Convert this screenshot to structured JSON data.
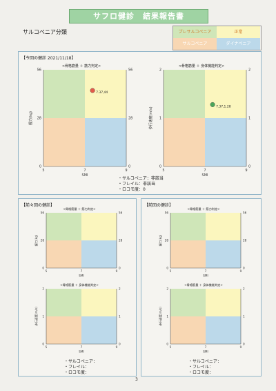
{
  "header": {
    "title": "サフロ健診　結果報告書",
    "subtitle": "サルコペニア分類"
  },
  "legend": {
    "items": [
      "プレサルコペニア",
      "正常",
      "サルコペニア",
      "ダイナペニア"
    ],
    "colors": [
      "#cfe6b8",
      "#fbf6be",
      "#f8d7b3",
      "#bcd9ea"
    ]
  },
  "current": {
    "label": "【今回の健診 2021/11/18】",
    "summary": [
      "・サルコペニア：非該当",
      "・フレイル：非該当",
      "・ロコモ度：0"
    ]
  },
  "previous2": {
    "label": "【前々回の健診】",
    "summary": [
      "・サルコペニア：",
      "・フレイル：",
      "・ロコモ度："
    ]
  },
  "previous1": {
    "label": "【前回の健診】",
    "summary": [
      "・サルコペニア：",
      "・フレイル：",
      "・ロコモ度："
    ]
  },
  "charts": {
    "strength": {
      "title": "<骨格筋量 ＋ 筋力判定>",
      "xlabel": "SMI",
      "ylabel": "握力(kg)",
      "x_ticks": [
        "5",
        "7",
        "9"
      ],
      "y_left_ticks": [
        "0",
        "28",
        "56"
      ],
      "y_right_ticks": [
        "0",
        "28",
        "56"
      ]
    },
    "function": {
      "title": "<骨格筋量 ＋ 身体機能判定>",
      "xlabel": "SMI",
      "ylabel": "歩行速度(m/s)",
      "x_ticks": [
        "5",
        "7",
        "9"
      ],
      "y_left_ticks": [
        "0",
        "1",
        "2"
      ],
      "y_right_ticks": [
        "0",
        "1",
        "2"
      ]
    }
  },
  "chart_data": [
    {
      "type": "scatter",
      "panel": "current",
      "chart": "strength",
      "x": [
        7.37
      ],
      "y": [
        44
      ],
      "point_labels": [
        "7.37,44"
      ],
      "point_color": "#e35a4a",
      "xlim": [
        5,
        9
      ],
      "ylim": [
        0,
        56
      ]
    },
    {
      "type": "scatter",
      "panel": "current",
      "chart": "function",
      "x": [
        7.37
      ],
      "y": [
        1.28
      ],
      "point_labels": [
        "7.37,1.28"
      ],
      "point_color": "#4aa65a",
      "xlim": [
        5,
        9
      ],
      "ylim": [
        0,
        2
      ]
    }
  ],
  "page_number": "3"
}
